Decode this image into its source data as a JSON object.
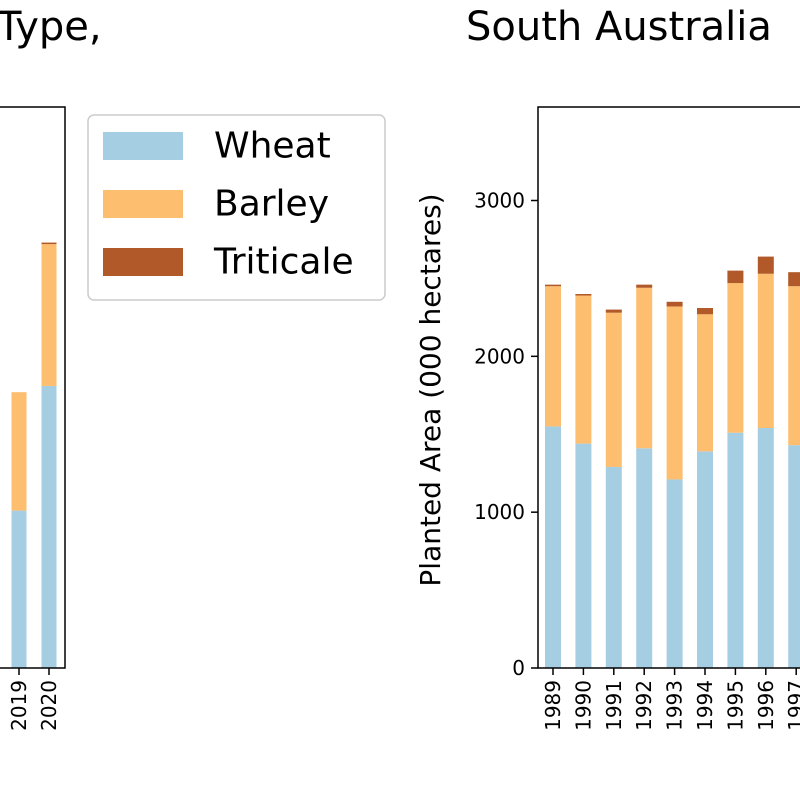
{
  "chart_data": [
    {
      "type": "bar",
      "stacked": true,
      "title": "Type,",
      "xlabel": "",
      "ylabel": "",
      "categories": [
        "2019",
        "2020"
      ],
      "series": [
        {
          "name": "Wheat",
          "color": "#a6cee3",
          "values": [
            1010,
            1810
          ]
        },
        {
          "name": "Barley",
          "color": "#fdbf6f",
          "values": [
            760,
            910
          ]
        },
        {
          "name": "Triticale",
          "color": "#b15928",
          "values": [
            0,
            10
          ]
        }
      ],
      "ylim": [
        0,
        3600
      ],
      "grid": false
    },
    {
      "type": "bar",
      "stacked": true,
      "title": "South Australia",
      "xlabel": "",
      "ylabel": "Planted Area (000 hectares)",
      "categories": [
        "1989",
        "1990",
        "1991",
        "1992",
        "1993",
        "1994",
        "1995",
        "1996",
        "1997"
      ],
      "series": [
        {
          "name": "Wheat",
          "color": "#a6cee3",
          "values": [
            1550,
            1440,
            1290,
            1410,
            1210,
            1390,
            1510,
            1540,
            1430
          ]
        },
        {
          "name": "Barley",
          "color": "#fdbf6f",
          "values": [
            900,
            950,
            990,
            1030,
            1110,
            880,
            960,
            990,
            1020
          ]
        },
        {
          "name": "Triticale",
          "color": "#b15928",
          "values": [
            10,
            10,
            20,
            20,
            30,
            40,
            80,
            110,
            90
          ]
        }
      ],
      "yticks": [
        0,
        1000,
        2000,
        3000
      ],
      "ytick_labels": [
        "0",
        "1000",
        "2000",
        "3000"
      ],
      "ylim": [
        0,
        3600
      ],
      "grid": false
    }
  ],
  "legend": {
    "placement": "center",
    "items": [
      {
        "label": "Wheat",
        "color": "#a6cee3"
      },
      {
        "label": "Barley",
        "color": "#fdbf6f"
      },
      {
        "label": "Triticale",
        "color": "#b15928"
      }
    ]
  }
}
